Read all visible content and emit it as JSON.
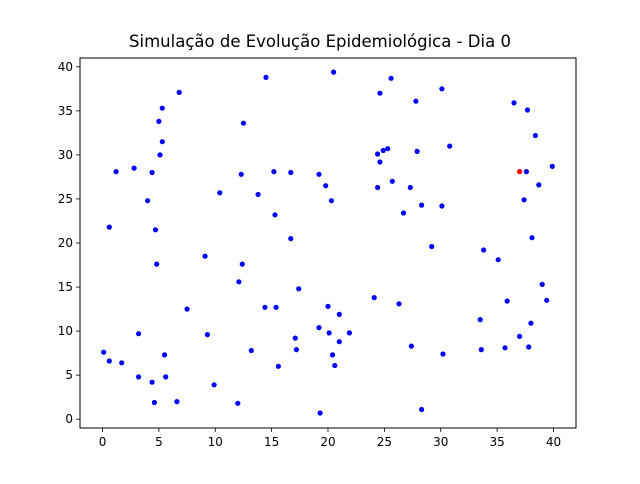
{
  "chart_data": {
    "type": "scatter",
    "title": "Simulação de Evolução Epidemiológica - Dia 0",
    "xlabel": "",
    "ylabel": "",
    "xlim": [
      -2,
      42
    ],
    "ylim": [
      -1,
      41
    ],
    "xticks": [
      "0",
      "5",
      "10",
      "15",
      "20",
      "25",
      "30",
      "35",
      "40"
    ],
    "yticks": [
      "0",
      "5",
      "10",
      "15",
      "20",
      "25",
      "30",
      "35",
      "40"
    ],
    "grid": false,
    "colors": {
      "healthy": "#0000ff",
      "infected": "#ff0000"
    },
    "series": [
      {
        "color": "#0000ff",
        "points": [
          [
            0.1,
            7.6
          ],
          [
            0.6,
            6.6
          ],
          [
            0.6,
            21.8
          ],
          [
            1.2,
            28.1
          ],
          [
            1.7,
            6.4
          ],
          [
            2.8,
            28.5
          ],
          [
            3.2,
            9.7
          ],
          [
            3.2,
            4.8
          ],
          [
            4.0,
            24.8
          ],
          [
            4.4,
            4.2
          ],
          [
            4.4,
            28.0
          ],
          [
            4.6,
            1.9
          ],
          [
            4.7,
            21.5
          ],
          [
            4.8,
            17.6
          ],
          [
            5.0,
            33.8
          ],
          [
            5.1,
            30.0
          ],
          [
            5.3,
            35.3
          ],
          [
            5.3,
            31.5
          ],
          [
            5.5,
            7.3
          ],
          [
            5.6,
            4.8
          ],
          [
            6.6,
            2.0
          ],
          [
            6.8,
            37.1
          ],
          [
            7.5,
            12.5
          ],
          [
            9.1,
            18.5
          ],
          [
            9.3,
            9.6
          ],
          [
            9.9,
            3.9
          ],
          [
            10.4,
            25.7
          ],
          [
            12.0,
            1.8
          ],
          [
            12.1,
            15.6
          ],
          [
            12.3,
            27.8
          ],
          [
            12.4,
            17.6
          ],
          [
            12.5,
            33.6
          ],
          [
            13.2,
            7.8
          ],
          [
            13.8,
            25.5
          ],
          [
            14.4,
            12.7
          ],
          [
            14.5,
            38.8
          ],
          [
            15.2,
            28.1
          ],
          [
            15.3,
            23.2
          ],
          [
            15.4,
            12.7
          ],
          [
            15.6,
            6.0
          ],
          [
            16.7,
            28.0
          ],
          [
            16.7,
            20.5
          ],
          [
            17.1,
            9.2
          ],
          [
            17.2,
            7.9
          ],
          [
            17.4,
            14.8
          ],
          [
            19.2,
            27.8
          ],
          [
            19.2,
            10.4
          ],
          [
            19.3,
            0.7
          ],
          [
            19.8,
            26.5
          ],
          [
            20.0,
            12.8
          ],
          [
            20.1,
            9.8
          ],
          [
            20.3,
            24.8
          ],
          [
            20.4,
            7.3
          ],
          [
            20.5,
            39.4
          ],
          [
            20.6,
            6.1
          ],
          [
            21.0,
            11.9
          ],
          [
            21.0,
            8.8
          ],
          [
            21.9,
            9.8
          ],
          [
            24.1,
            13.8
          ],
          [
            24.4,
            26.3
          ],
          [
            24.4,
            30.1
          ],
          [
            24.6,
            29.2
          ],
          [
            24.6,
            37.0
          ],
          [
            24.9,
            30.5
          ],
          [
            25.3,
            30.7
          ],
          [
            25.6,
            38.7
          ],
          [
            25.7,
            27.0
          ],
          [
            26.3,
            13.1
          ],
          [
            26.7,
            23.4
          ],
          [
            27.3,
            26.3
          ],
          [
            27.4,
            8.3
          ],
          [
            27.8,
            36.1
          ],
          [
            27.9,
            30.4
          ],
          [
            28.3,
            24.3
          ],
          [
            28.3,
            1.1
          ],
          [
            29.2,
            19.6
          ],
          [
            30.1,
            24.2
          ],
          [
            30.1,
            37.5
          ],
          [
            30.2,
            7.4
          ],
          [
            30.8,
            31.0
          ],
          [
            33.5,
            11.3
          ],
          [
            33.6,
            7.9
          ],
          [
            33.8,
            19.2
          ],
          [
            35.1,
            18.1
          ],
          [
            35.7,
            8.1
          ],
          [
            35.9,
            13.4
          ],
          [
            36.5,
            35.9
          ],
          [
            37.0,
            9.4
          ],
          [
            37.4,
            24.9
          ],
          [
            37.6,
            28.1
          ],
          [
            37.7,
            35.1
          ],
          [
            37.8,
            8.2
          ],
          [
            38.0,
            10.9
          ],
          [
            38.1,
            20.6
          ],
          [
            38.4,
            32.2
          ],
          [
            38.7,
            26.6
          ],
          [
            39.0,
            15.3
          ],
          [
            39.4,
            13.5
          ],
          [
            39.9,
            28.7
          ]
        ]
      },
      {
        "color": "#ff0000",
        "points": [
          [
            37.0,
            28.1
          ]
        ]
      }
    ]
  }
}
